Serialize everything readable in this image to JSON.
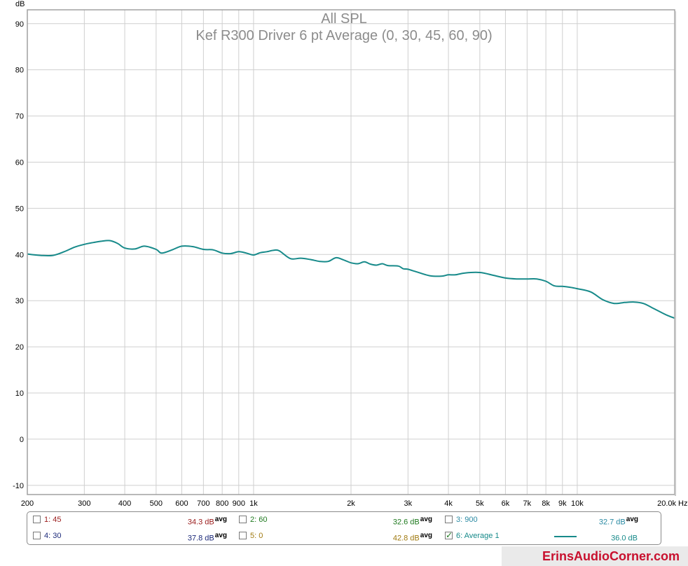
{
  "chart_data": {
    "type": "line",
    "title": "All SPL",
    "subtitle": "Kef R300 Driver 6 pt Average (0, 30, 45, 60, 90)",
    "ylabel": "dB",
    "xunit": "Hz",
    "xscale": "log",
    "xlim": [
      200,
      20000
    ],
    "ylim": [
      -12,
      93
    ],
    "grid": true,
    "y_ticks": [
      90,
      80,
      70,
      60,
      50,
      40,
      30,
      20,
      10,
      0,
      -10
    ],
    "x_ticks": [
      {
        "value": 200,
        "label": "200"
      },
      {
        "value": 300,
        "label": "300"
      },
      {
        "value": 400,
        "label": "400"
      },
      {
        "value": 500,
        "label": "500"
      },
      {
        "value": 600,
        "label": "600"
      },
      {
        "value": 700,
        "label": "700"
      },
      {
        "value": 800,
        "label": "800"
      },
      {
        "value": 900,
        "label": "900"
      },
      {
        "value": 1000,
        "label": "1k"
      },
      {
        "value": 2000,
        "label": "2k"
      },
      {
        "value": 3000,
        "label": "3k"
      },
      {
        "value": 4000,
        "label": "4k"
      },
      {
        "value": 5000,
        "label": "5k"
      },
      {
        "value": 6000,
        "label": "6k"
      },
      {
        "value": 7000,
        "label": "7k"
      },
      {
        "value": 8000,
        "label": "8k"
      },
      {
        "value": 9000,
        "label": "9k"
      },
      {
        "value": 10000,
        "label": "10k"
      },
      {
        "value": 20000,
        "label": "20.0k"
      }
    ],
    "series": [
      {
        "name": "6: Average 1",
        "color": "#178a8a",
        "x": [
          200,
          220,
          240,
          260,
          280,
          300,
          320,
          340,
          360,
          380,
          400,
          430,
          460,
          500,
          520,
          560,
          600,
          650,
          700,
          750,
          800,
          850,
          900,
          950,
          1000,
          1050,
          1100,
          1150,
          1200,
          1300,
          1400,
          1500,
          1600,
          1700,
          1800,
          1900,
          2000,
          2100,
          2200,
          2300,
          2400,
          2500,
          2600,
          2800,
          2900,
          3000,
          3200,
          3500,
          3800,
          4000,
          4200,
          4500,
          5000,
          5500,
          6000,
          6500,
          7000,
          7500,
          8000,
          8500,
          9000,
          9500,
          10000,
          11000,
          12000,
          13000,
          14000,
          15000,
          16000,
          17000,
          18000,
          19000,
          20000
        ],
        "values": [
          40.1,
          39.8,
          39.8,
          40.6,
          41.6,
          42.2,
          42.6,
          42.9,
          43.0,
          42.4,
          41.4,
          41.2,
          41.8,
          41.1,
          40.3,
          41.0,
          41.8,
          41.7,
          41.1,
          41.0,
          40.3,
          40.2,
          40.6,
          40.3,
          39.9,
          40.4,
          40.6,
          40.9,
          40.8,
          39.1,
          39.2,
          38.9,
          38.5,
          38.5,
          39.3,
          38.8,
          38.2,
          38.0,
          38.4,
          37.9,
          37.7,
          38.0,
          37.6,
          37.5,
          36.9,
          36.8,
          36.2,
          35.4,
          35.3,
          35.6,
          35.6,
          36.0,
          36.1,
          35.5,
          34.9,
          34.7,
          34.7,
          34.7,
          34.2,
          33.2,
          33.1,
          32.9,
          32.6,
          31.9,
          30.2,
          29.4,
          29.6,
          29.7,
          29.4,
          28.5,
          27.6,
          26.8,
          26.2
        ]
      }
    ]
  },
  "legend": {
    "items": [
      {
        "label": "1: 45",
        "value": "34.3 dB",
        "suffix": "avg",
        "checked": false,
        "color": "#9a1b1b"
      },
      {
        "label": "2: 60",
        "value": "32.6 dB",
        "suffix": "avg",
        "checked": false,
        "color": "#1f7a1f"
      },
      {
        "label": "3: 900",
        "value": "32.7 dB",
        "suffix": "avg",
        "checked": false,
        "color": "#2a8aa3"
      },
      {
        "label": "4: 30",
        "value": "37.8 dB",
        "suffix": "avg",
        "checked": false,
        "color": "#1c2a7a"
      },
      {
        "label": "5: 0",
        "value": "42.8 dB",
        "suffix": "avg",
        "checked": false,
        "color": "#a07a10"
      },
      {
        "label": "6: Average 1",
        "value": "36.0 dB",
        "suffix": "",
        "checked": true,
        "color": "#178a8a"
      }
    ]
  },
  "watermark": "ErinsAudioCorner.com"
}
